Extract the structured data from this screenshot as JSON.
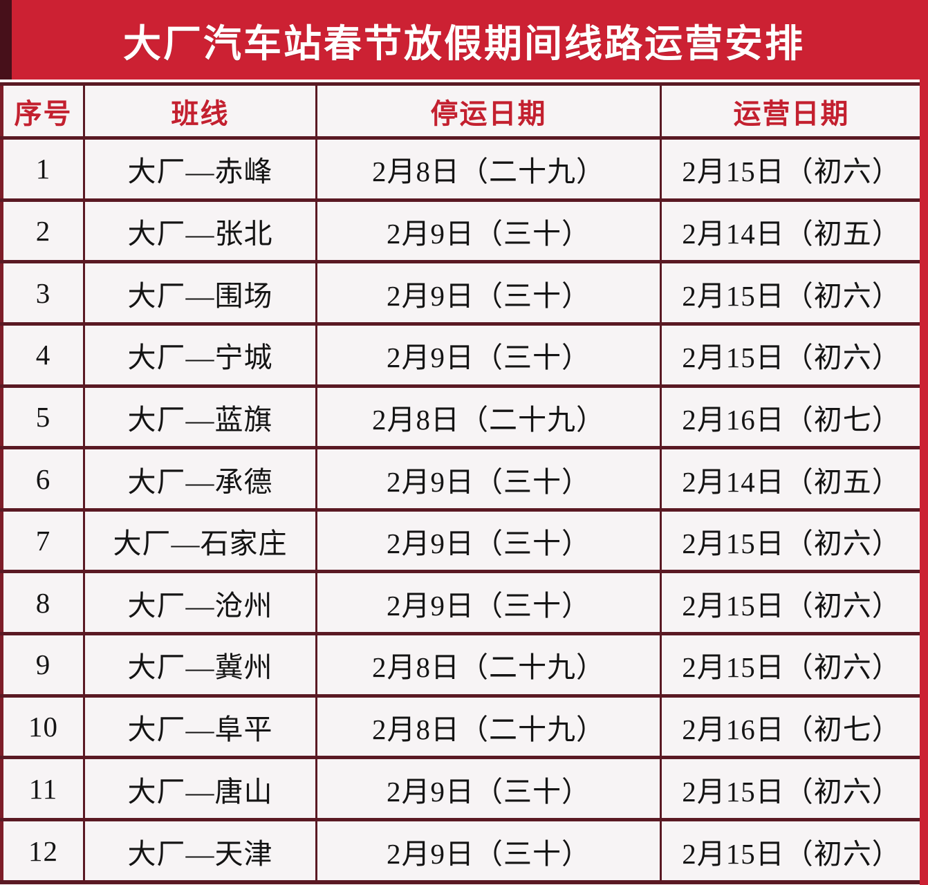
{
  "title": "大厂汽车站春节放假期间线路运营安排",
  "colors": {
    "banner_red": "#cc2133",
    "banner_dark_strip": "#47101a",
    "grid_border_dark": "#5a1923",
    "header_text_red": "#c3202f",
    "cell_background": "#f7f4f5",
    "title_text": "#ffffff",
    "body_text": "#141414"
  },
  "table": {
    "headers": {
      "no": "序号",
      "route": "班线",
      "stop_date": "停运日期",
      "run_date": "运营日期"
    },
    "rows": [
      {
        "no": "1",
        "route": "大厂—赤峰",
        "stop": "2月8日（二十九）",
        "run": "2月15日（初六）"
      },
      {
        "no": "2",
        "route": "大厂—张北",
        "stop": "2月9日（三十）",
        "run": "2月14日（初五）"
      },
      {
        "no": "3",
        "route": "大厂—围场",
        "stop": "2月9日（三十）",
        "run": "2月15日（初六）"
      },
      {
        "no": "4",
        "route": "大厂—宁城",
        "stop": "2月9日（三十）",
        "run": "2月15日（初六）"
      },
      {
        "no": "5",
        "route": "大厂—蓝旗",
        "stop": "2月8日（二十九）",
        "run": "2月16日（初七）"
      },
      {
        "no": "6",
        "route": "大厂—承德",
        "stop": "2月9日（三十）",
        "run": "2月14日（初五）"
      },
      {
        "no": "7",
        "route": "大厂—石家庄",
        "stop": "2月9日（三十）",
        "run": "2月15日（初六）"
      },
      {
        "no": "8",
        "route": "大厂—沧州",
        "stop": "2月9日（三十）",
        "run": "2月15日（初六）"
      },
      {
        "no": "9",
        "route": "大厂—冀州",
        "stop": "2月8日（二十九）",
        "run": "2月15日（初六）"
      },
      {
        "no": "10",
        "route": "大厂—阜平",
        "stop": "2月8日（二十九）",
        "run": "2月16日（初七）"
      },
      {
        "no": "11",
        "route": "大厂—唐山",
        "stop": "2月9日（三十）",
        "run": "2月15日（初六）"
      },
      {
        "no": "12",
        "route": "大厂—天津",
        "stop": "2月9日（三十）",
        "run": "2月15日（初六）"
      }
    ]
  }
}
